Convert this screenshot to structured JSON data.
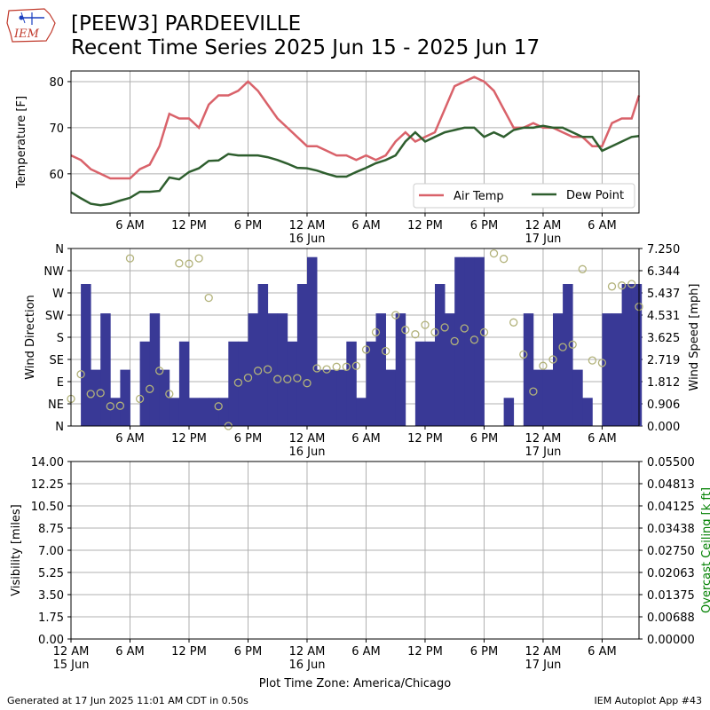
{
  "header": {
    "title_line1": "[PEEW3] PARDEEVILLE",
    "title_line2": "Recent Time Series 2025 Jun 15 - 2025 Jun 17",
    "logo_text": "IEM"
  },
  "footer": {
    "generated": "Generated at 17 Jun 2025 11:01 AM CDT in 0.50s",
    "app": "IEM Autoplot App #43",
    "timezone": "Plot Time Zone: America/Chicago"
  },
  "colors": {
    "air_temp": "#d9626a",
    "dew_point": "#2e5e2e",
    "wind_speed": "#393996",
    "wind_dir": "#b2b27a",
    "ceiling_axis": "#008000",
    "grid": "#b0b0b0"
  },
  "chart_data": [
    {
      "type": "line",
      "ylabel": "Temperature [F]",
      "ylim": [
        51.5,
        82.3
      ],
      "xlim_hours": [
        0,
        57.75
      ],
      "grid": true,
      "legend_position": "bottom-right",
      "yticks": [
        60,
        70,
        80
      ],
      "xticks": [
        {
          "h": 6,
          "label": "6 AM"
        },
        {
          "h": 12,
          "label": "12 PM"
        },
        {
          "h": 18,
          "label": "6 PM"
        },
        {
          "h": 24,
          "label": "12 AM",
          "sub": "16 Jun"
        },
        {
          "h": 30,
          "label": "6 AM"
        },
        {
          "h": 36,
          "label": "12 PM"
        },
        {
          "h": 42,
          "label": "6 PM"
        },
        {
          "h": 48,
          "label": "12 AM",
          "sub": "17 Jun"
        },
        {
          "h": 54,
          "label": "6 AM"
        }
      ],
      "series": [
        {
          "name": "Air Temp",
          "x": [
            0,
            1,
            2,
            3,
            4,
            5,
            6,
            7,
            8,
            9,
            10,
            11,
            12,
            13,
            14,
            15,
            16,
            17,
            18,
            19,
            20,
            21,
            22,
            23,
            24,
            25,
            26,
            27,
            28,
            29,
            30,
            31,
            32,
            33,
            34,
            35,
            36,
            37,
            38,
            39,
            40,
            41,
            42,
            43,
            44,
            45,
            46,
            47,
            48,
            49,
            50,
            51,
            52,
            53,
            54,
            55,
            56,
            57,
            57.75
          ],
          "values": [
            64,
            63,
            61,
            60,
            59,
            59,
            59,
            61,
            62,
            66,
            73,
            72,
            72,
            70,
            75,
            77,
            77,
            78,
            80,
            78,
            75,
            72,
            70,
            68,
            66,
            66,
            65,
            64,
            64,
            63,
            64,
            63,
            64,
            67,
            69,
            67,
            68,
            69,
            74,
            79,
            80,
            81,
            80,
            78,
            74,
            70,
            70,
            71,
            70,
            70,
            69,
            68,
            68,
            66,
            66,
            71,
            72,
            72,
            77
          ]
        },
        {
          "name": "Dew Point",
          "x": [
            0,
            1,
            2,
            3,
            4,
            5,
            6,
            7,
            8,
            9,
            10,
            11,
            12,
            13,
            14,
            15,
            16,
            17,
            18,
            19,
            20,
            21,
            22,
            23,
            24,
            25,
            26,
            27,
            28,
            29,
            30,
            31,
            32,
            33,
            34,
            35,
            36,
            37,
            38,
            39,
            40,
            41,
            42,
            43,
            44,
            45,
            46,
            47,
            48,
            49,
            50,
            51,
            52,
            53,
            54,
            55,
            56,
            57,
            57.75
          ],
          "values": [
            56,
            54.7,
            53.5,
            53.2,
            53.5,
            54.2,
            54.8,
            56.1,
            56.1,
            56.3,
            59.2,
            58.8,
            60.4,
            61.2,
            62.8,
            62.9,
            64.3,
            64,
            64,
            64,
            63.6,
            63,
            62.2,
            61.3,
            61.2,
            60.7,
            60,
            59.4,
            59.4,
            60.4,
            61.3,
            62.3,
            63,
            64,
            67,
            69,
            67,
            68,
            69,
            69.5,
            70,
            70,
            68,
            69,
            68,
            69.5,
            70,
            70,
            70.4,
            70,
            70,
            69,
            68,
            68,
            65,
            66,
            67,
            68,
            68.2
          ]
        }
      ]
    },
    {
      "type": "bar",
      "ylabel": "Wind Direction",
      "y2label": "Wind Speed [mph]",
      "ylim": [
        0,
        360
      ],
      "y2lim": [
        0,
        7.25
      ],
      "xlim_hours": [
        0,
        57.75
      ],
      "grid": true,
      "dir_ticks": [
        {
          "deg": 0,
          "label": "N"
        },
        {
          "deg": 45,
          "label": "NE"
        },
        {
          "deg": 90,
          "label": "E"
        },
        {
          "deg": 135,
          "label": "SE"
        },
        {
          "deg": 180,
          "label": "S"
        },
        {
          "deg": 225,
          "label": "SW"
        },
        {
          "deg": 270,
          "label": "W"
        },
        {
          "deg": 315,
          "label": "NW"
        },
        {
          "deg": 360,
          "label": "N"
        }
      ],
      "speed_ticks": [
        "0.000",
        "0.906",
        "1.812",
        "2.719",
        "3.625",
        "4.531",
        "5.437",
        "6.344",
        "7.250"
      ],
      "xticks": [
        {
          "h": 6,
          "label": "6 AM"
        },
        {
          "h": 12,
          "label": "12 PM"
        },
        {
          "h": 18,
          "label": "6 PM"
        },
        {
          "h": 24,
          "label": "12 AM",
          "sub": "16 Jun"
        },
        {
          "h": 30,
          "label": "6 AM"
        },
        {
          "h": 36,
          "label": "12 PM"
        },
        {
          "h": 42,
          "label": "6 PM"
        },
        {
          "h": 48,
          "label": "12 AM",
          "sub": "17 Jun"
        },
        {
          "h": 54,
          "label": "6 AM"
        }
      ],
      "series": [
        {
          "name": "Wind Speed",
          "x": [
            0,
            1,
            2,
            3,
            4,
            5,
            6,
            7,
            8,
            9,
            10,
            11,
            12,
            13,
            14,
            15,
            16,
            17,
            18,
            19,
            20,
            21,
            22,
            23,
            24,
            25,
            26,
            27,
            28,
            29,
            30,
            31,
            32,
            33,
            34,
            35,
            36,
            37,
            38,
            39,
            40,
            41,
            42,
            43,
            44,
            45,
            46,
            47,
            48,
            49,
            50,
            51,
            52,
            53,
            54,
            55,
            56,
            57
          ],
          "values": [
            0,
            5.8,
            2.3,
            4.6,
            1.15,
            2.3,
            0,
            3.45,
            4.6,
            2.3,
            1.15,
            3.45,
            1.15,
            1.15,
            1.15,
            1.15,
            3.45,
            3.45,
            4.6,
            5.8,
            4.6,
            4.6,
            3.45,
            5.8,
            6.9,
            2.3,
            2.3,
            2.3,
            3.45,
            1.15,
            3.45,
            4.6,
            2.3,
            4.6,
            0,
            3.45,
            3.45,
            5.8,
            4.6,
            6.9,
            6.9,
            6.9,
            0,
            0,
            1.15,
            0,
            4.6,
            2.3,
            2.3,
            4.6,
            5.8,
            2.3,
            1.15,
            0,
            4.6,
            4.6,
            5.8,
            5.8
          ]
        },
        {
          "name": "Wind Direction",
          "x": [
            0,
            1,
            2,
            3,
            4,
            5,
            6,
            7,
            8,
            9,
            10,
            11,
            12,
            13,
            14,
            15,
            16,
            17,
            18,
            19,
            20,
            21,
            22,
            23,
            24,
            25,
            26,
            27,
            28,
            29,
            30,
            31,
            32,
            33,
            34,
            35,
            36,
            37,
            38,
            39,
            40,
            41,
            42,
            43,
            44,
            45,
            46,
            47,
            48,
            49,
            50,
            51,
            52,
            53,
            54,
            55,
            56,
            57,
            57.75
          ],
          "values": [
            55,
            105,
            65,
            67,
            40,
            41,
            340,
            55,
            75,
            112,
            65,
            330,
            329,
            340,
            260,
            40,
            0,
            88,
            98,
            112,
            115,
            95,
            95,
            97,
            87,
            117,
            115,
            120,
            120,
            122,
            155,
            190,
            152,
            225,
            195,
            186,
            205,
            190,
            200,
            172,
            198,
            175,
            190,
            350,
            339,
            210,
            145,
            70,
            122,
            135,
            160,
            165,
            318,
            133,
            128,
            283,
            285,
            288,
            242
          ]
        }
      ]
    },
    {
      "type": "line",
      "ylabel": "Visibility [miles]",
      "y2label": "Overcast Ceiling [k ft]",
      "ylim": [
        0,
        14
      ],
      "y2lim": [
        0,
        0.055
      ],
      "xlim_hours": [
        0,
        57.75
      ],
      "grid": true,
      "yticks": [
        "0.00",
        "1.75",
        "3.50",
        "5.25",
        "7.00",
        "8.75",
        "10.50",
        "12.25",
        "14.00"
      ],
      "y2ticks": [
        "0.00000",
        "0.00688",
        "0.01375",
        "0.02063",
        "0.02750",
        "0.03438",
        "0.04125",
        "0.04813",
        "0.05500"
      ],
      "xticks": [
        {
          "h": 0,
          "label": "12 AM",
          "sub": "15 Jun"
        },
        {
          "h": 6,
          "label": "6 AM"
        },
        {
          "h": 12,
          "label": "12 PM"
        },
        {
          "h": 18,
          "label": "6 PM"
        },
        {
          "h": 24,
          "label": "12 AM",
          "sub": "16 Jun"
        },
        {
          "h": 30,
          "label": "6 AM"
        },
        {
          "h": 36,
          "label": "12 PM"
        },
        {
          "h": 42,
          "label": "6 PM"
        },
        {
          "h": 48,
          "label": "12 AM",
          "sub": "17 Jun"
        },
        {
          "h": 54,
          "label": "6 AM"
        }
      ],
      "series": []
    }
  ]
}
